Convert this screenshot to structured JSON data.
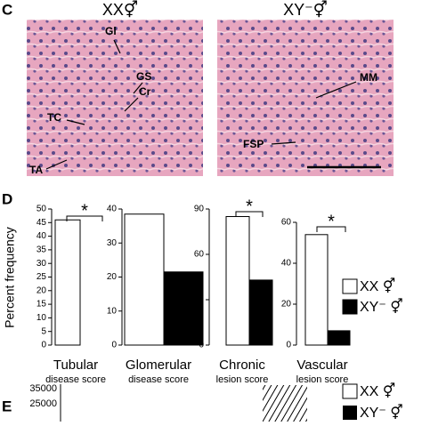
{
  "panel_c": {
    "label": "C",
    "images": [
      {
        "title": "XX⚥",
        "labels": [
          "Gl",
          "GS",
          "Cr",
          "TC",
          "TA"
        ]
      },
      {
        "title": "XY⁻⚥",
        "labels": [
          "MM",
          "FSP"
        ]
      }
    ]
  },
  "panel_d": {
    "label": "D",
    "y_label": "Percent frequency",
    "legend": [
      {
        "name": "XX ⚥",
        "color": "#ffffff"
      },
      {
        "name": "XY⁻ ⚥",
        "color": "#000000"
      }
    ]
  },
  "chart_data": [
    {
      "type": "bar",
      "xlabel": "Tubular",
      "xlabel_sub": "disease score",
      "values": [
        46,
        0
      ],
      "ylim": [
        0,
        50
      ],
      "yticks": [
        0,
        5,
        10,
        15,
        20,
        25,
        30,
        35,
        40,
        45,
        50
      ],
      "annotation": "*"
    },
    {
      "type": "bar",
      "xlabel": "Glomerular",
      "xlabel_sub": "disease score",
      "values": [
        38.5,
        21.5
      ],
      "ylim": [
        0,
        40
      ],
      "yticks": [
        0,
        10,
        20,
        30,
        40
      ]
    },
    {
      "type": "bar",
      "xlabel": "Chronic",
      "xlabel_sub": "lesion score",
      "values": [
        85,
        43
      ],
      "ylim": [
        0,
        90
      ],
      "yticks": [
        0,
        30,
        60,
        90
      ],
      "annotation": "*"
    },
    {
      "type": "bar",
      "xlabel": "Vascular",
      "xlabel_sub": "lesion score",
      "values": [
        54,
        7
      ],
      "ylim": [
        0,
        60
      ],
      "yticks": [
        0,
        20,
        40,
        60
      ],
      "annotation": "*"
    }
  ],
  "panel_e": {
    "label": "E",
    "yticks": [
      35000,
      25000
    ],
    "legend": [
      "XX ⚥",
      "XY⁻ ⚥"
    ]
  }
}
